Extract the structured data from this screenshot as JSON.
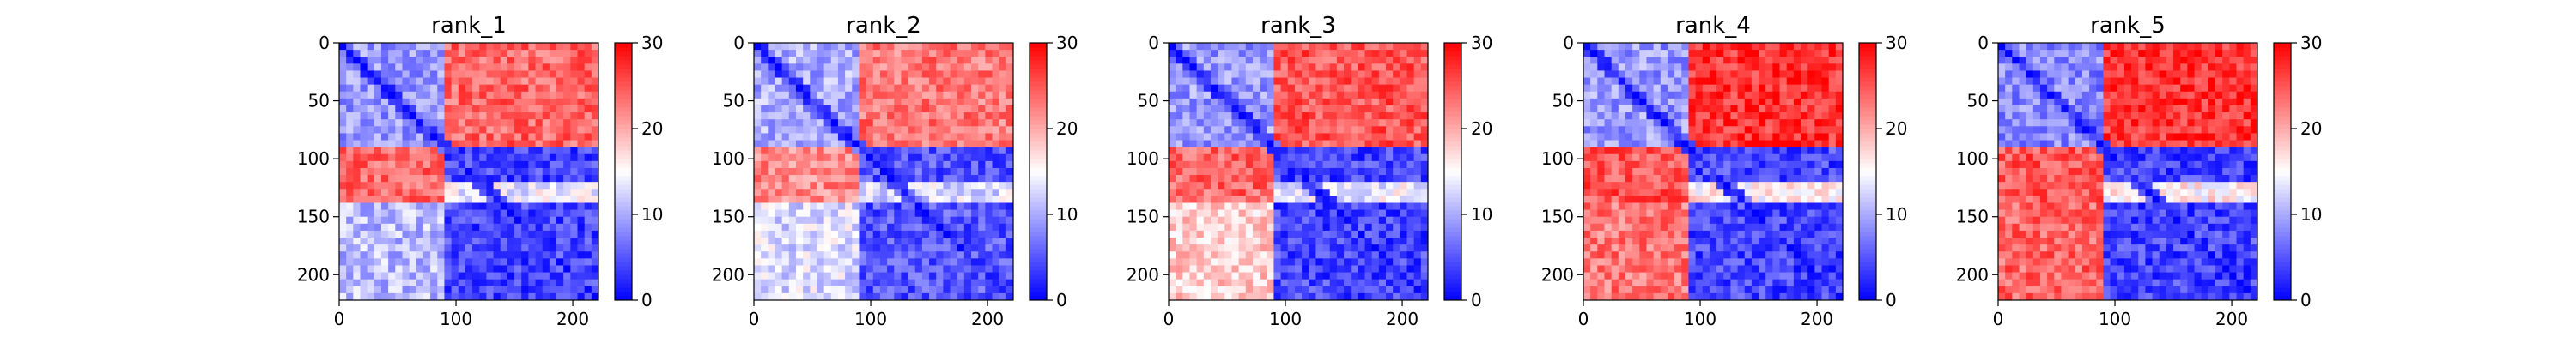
{
  "chart_data": [
    {
      "type": "heatmap",
      "title": "rank_1",
      "xlim": [
        0,
        222
      ],
      "ylim": [
        222,
        0
      ],
      "xticks": [
        0,
        100,
        200
      ],
      "yticks": [
        0,
        50,
        100,
        150,
        200
      ],
      "colorbar": {
        "min": 0,
        "max": 30,
        "ticks": [
          0,
          10,
          20,
          30
        ],
        "colormap": "bwr"
      },
      "blocks": [
        {
          "x": [
            0,
            88
          ],
          "y": [
            0,
            88
          ],
          "value": 9
        },
        {
          "x": [
            88,
            222
          ],
          "y": [
            88,
            222
          ],
          "value": 4
        },
        {
          "x": [
            88,
            222
          ],
          "y": [
            0,
            88
          ],
          "value": 24
        },
        {
          "x": [
            0,
            88
          ],
          "y": [
            88,
            222
          ],
          "value": 24
        },
        {
          "x": [
            88,
            222
          ],
          "y": [
            120,
            140
          ],
          "value": 14
        },
        {
          "x": [
            0,
            88
          ],
          "y": [
            140,
            222
          ],
          "value": 11
        }
      ],
      "grid": false
    },
    {
      "type": "heatmap",
      "title": "rank_2",
      "xlim": [
        0,
        222
      ],
      "ylim": [
        222,
        0
      ],
      "xticks": [
        0,
        100,
        200
      ],
      "yticks": [
        0,
        50,
        100,
        150,
        200
      ],
      "colorbar": {
        "min": 0,
        "max": 30,
        "ticks": [
          0,
          10,
          20,
          30
        ],
        "colormap": "bwr"
      },
      "blocks": [
        {
          "x": [
            0,
            88
          ],
          "y": [
            0,
            88
          ],
          "value": 10
        },
        {
          "x": [
            88,
            222
          ],
          "y": [
            88,
            222
          ],
          "value": 5
        },
        {
          "x": [
            88,
            222
          ],
          "y": [
            0,
            88
          ],
          "value": 23
        },
        {
          "x": [
            0,
            88
          ],
          "y": [
            88,
            222
          ],
          "value": 22
        },
        {
          "x": [
            88,
            222
          ],
          "y": [
            120,
            140
          ],
          "value": 13
        },
        {
          "x": [
            0,
            88
          ],
          "y": [
            140,
            222
          ],
          "value": 13
        }
      ],
      "grid": false
    },
    {
      "type": "heatmap",
      "title": "rank_3",
      "xlim": [
        0,
        222
      ],
      "ylim": [
        222,
        0
      ],
      "xticks": [
        0,
        100,
        200
      ],
      "yticks": [
        0,
        50,
        100,
        150,
        200
      ],
      "colorbar": {
        "min": 0,
        "max": 30,
        "ticks": [
          0,
          10,
          20,
          30
        ],
        "colormap": "bwr"
      },
      "blocks": [
        {
          "x": [
            0,
            88
          ],
          "y": [
            0,
            88
          ],
          "value": 9
        },
        {
          "x": [
            88,
            222
          ],
          "y": [
            88,
            222
          ],
          "value": 4
        },
        {
          "x": [
            88,
            222
          ],
          "y": [
            0,
            88
          ],
          "value": 25
        },
        {
          "x": [
            0,
            88
          ],
          "y": [
            88,
            222
          ],
          "value": 24
        },
        {
          "x": [
            88,
            222
          ],
          "y": [
            120,
            140
          ],
          "value": 14
        },
        {
          "x": [
            0,
            88
          ],
          "y": [
            140,
            222
          ],
          "value": 18
        }
      ],
      "grid": false
    },
    {
      "type": "heatmap",
      "title": "rank_4",
      "xlim": [
        0,
        222
      ],
      "ylim": [
        222,
        0
      ],
      "xticks": [
        0,
        100,
        200
      ],
      "yticks": [
        0,
        50,
        100,
        150,
        200
      ],
      "colorbar": {
        "min": 0,
        "max": 30,
        "ticks": [
          0,
          10,
          20,
          30
        ],
        "colormap": "bwr"
      },
      "blocks": [
        {
          "x": [
            0,
            88
          ],
          "y": [
            0,
            88
          ],
          "value": 9
        },
        {
          "x": [
            88,
            222
          ],
          "y": [
            88,
            222
          ],
          "value": 4
        },
        {
          "x": [
            88,
            222
          ],
          "y": [
            0,
            88
          ],
          "value": 27
        },
        {
          "x": [
            0,
            88
          ],
          "y": [
            88,
            222
          ],
          "value": 25
        },
        {
          "x": [
            88,
            222
          ],
          "y": [
            120,
            140
          ],
          "value": 16
        },
        {
          "x": [
            0,
            88
          ],
          "y": [
            140,
            222
          ],
          "value": 23
        }
      ],
      "grid": false
    },
    {
      "type": "heatmap",
      "title": "rank_5",
      "xlim": [
        0,
        222
      ],
      "ylim": [
        222,
        0
      ],
      "xticks": [
        0,
        100,
        200
      ],
      "yticks": [
        0,
        50,
        100,
        150,
        200
      ],
      "colorbar": {
        "min": 0,
        "max": 30,
        "ticks": [
          0,
          10,
          20,
          30
        ],
        "colormap": "bwr"
      },
      "blocks": [
        {
          "x": [
            0,
            88
          ],
          "y": [
            0,
            88
          ],
          "value": 8
        },
        {
          "x": [
            88,
            222
          ],
          "y": [
            88,
            222
          ],
          "value": 4
        },
        {
          "x": [
            88,
            222
          ],
          "y": [
            0,
            88
          ],
          "value": 27
        },
        {
          "x": [
            0,
            88
          ],
          "y": [
            88,
            222
          ],
          "value": 25
        },
        {
          "x": [
            88,
            222
          ],
          "y": [
            120,
            140
          ],
          "value": 16
        },
        {
          "x": [
            0,
            88
          ],
          "y": [
            140,
            222
          ],
          "value": 24
        }
      ],
      "grid": false
    }
  ]
}
